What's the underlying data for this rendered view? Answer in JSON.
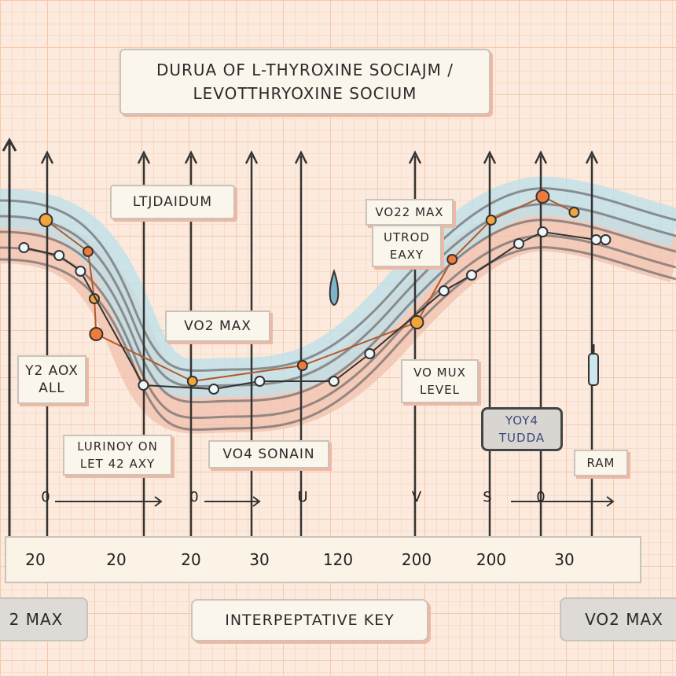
{
  "title": "DURUA OF L-THYROXINE SOCIAJM /\nLEVOTTHRYOXINE SOCIUM",
  "annotations": [
    {
      "text": "LTJDAIDUM"
    },
    {
      "text": "VO2 MAX"
    },
    {
      "text": "Y2 AOX\nALL"
    },
    {
      "text": "LURINOY ON\nLET 42 AXY"
    },
    {
      "text": "VO4 SONAIN"
    },
    {
      "text": "VO22 MAX"
    },
    {
      "text": "UTROD\nEAXY"
    },
    {
      "text": "VO MUX\nLEVEL"
    },
    {
      "text": "YOY4\nTUDDA"
    },
    {
      "text": "RAM"
    }
  ],
  "markers": [
    "0",
    "0",
    "U",
    "V",
    "S",
    "0"
  ],
  "key": {
    "left": "2 MAX",
    "center": "INTERPEPTATIVE KEY",
    "right": "VO2 MAX"
  },
  "colors": {
    "orange": "#f07a3a",
    "amber": "#f2a53a",
    "line": "#3b3b3b",
    "band_blue": "#bfe0ea",
    "band_pink": "#f3c2b0"
  },
  "icons": [
    "droplet-icon",
    "syringe-icon"
  ],
  "chart_data": {
    "type": "line",
    "title": "DURUA OF L-THYROXINE SOCIAJM / LEVOTTHRYOXINE SOCIUM",
    "x_tick_labels": [
      "20",
      "20",
      "20",
      "30",
      "120",
      "200",
      "200",
      "30"
    ],
    "xlim": [
      0,
      100
    ],
    "ylim": [
      0,
      10
    ],
    "grid": true,
    "series": [
      {
        "color": "#f07a3a",
        "points": [
          [
            5.8,
            8.2
          ],
          [
            12.5,
            7.4
          ],
          [
            13.5,
            6.2
          ],
          [
            13.8,
            5.3
          ],
          [
            29.1,
            4.1
          ],
          [
            46.6,
            4.5
          ],
          [
            64.8,
            5.6
          ],
          [
            70.4,
            7.2
          ],
          [
            76.6,
            8.2
          ],
          [
            84.8,
            8.8
          ],
          [
            89.8,
            8.4
          ]
        ]
      },
      {
        "color": "#ffffff",
        "points": [
          [
            2.3,
            7.5
          ],
          [
            7.9,
            7.3
          ],
          [
            11.3,
            6.9
          ],
          [
            21.3,
            4.0
          ],
          [
            32.5,
            3.9
          ],
          [
            39.8,
            4.1
          ],
          [
            51.6,
            4.1
          ],
          [
            57.3,
            4.8
          ],
          [
            69.1,
            6.4
          ],
          [
            73.5,
            6.8
          ],
          [
            81,
            7.6
          ],
          [
            84.8,
            7.9
          ],
          [
            93.3,
            7.7
          ],
          [
            94.8,
            7.7
          ]
        ]
      }
    ]
  }
}
